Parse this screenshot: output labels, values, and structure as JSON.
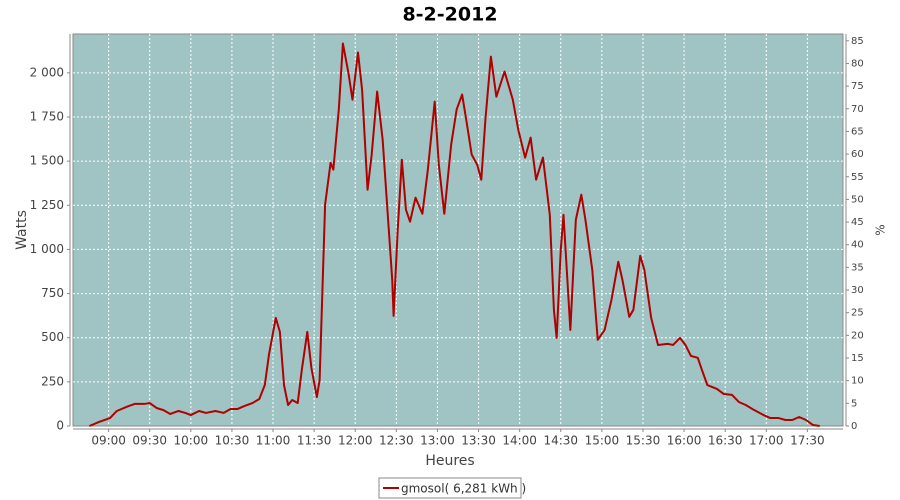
{
  "chart_data": {
    "type": "line",
    "title": "8-2-2012",
    "x_label": "Heures",
    "y_label": "Watts",
    "y2_label": "%",
    "x": [
      "08:46",
      "08:53",
      "09:01",
      "09:06",
      "09:13",
      "09:19",
      "09:26",
      "09:30",
      "09:35",
      "09:40",
      "09:45",
      "09:51",
      "09:56",
      "10:00",
      "10:06",
      "10:11",
      "10:18",
      "10:24",
      "10:29",
      "10:34",
      "10:39",
      "10:45",
      "10:50",
      "10:54",
      "10:57",
      "11:02",
      "11:05",
      "11:08",
      "11:11",
      "11:14",
      "11:18",
      "11:21",
      "11:25",
      "11:28",
      "11:32",
      "11:34",
      "11:38",
      "11:42",
      "11:44",
      "11:48",
      "11:51",
      "11:55",
      "11:58",
      "12:02",
      "12:05",
      "12:09",
      "12:12",
      "12:16",
      "12:20",
      "12:23",
      "12:27",
      "12:28",
      "12:31",
      "12:34",
      "12:37",
      "12:40",
      "12:44",
      "12:49",
      "12:53",
      "12:58",
      "13:01",
      "13:05",
      "13:10",
      "13:14",
      "13:18",
      "13:21",
      "13:25",
      "13:29",
      "13:32",
      "13:35",
      "13:39",
      "13:43",
      "13:49",
      "13:55",
      "13:59",
      "14:04",
      "14:08",
      "14:12",
      "14:17",
      "14:22",
      "14:25",
      "14:27",
      "14:30",
      "14:32",
      "14:37",
      "14:41",
      "14:45",
      "14:48",
      "14:53",
      "14:57",
      "15:02",
      "15:07",
      "15:12",
      "15:15",
      "15:20",
      "15:23",
      "15:28",
      "15:31",
      "15:36",
      "15:41",
      "15:48",
      "15:52",
      "15:57",
      "16:01",
      "16:05",
      "16:10",
      "16:13",
      "16:17",
      "16:24",
      "16:29",
      "16:35",
      "16:40",
      "16:45",
      "16:51",
      "16:58",
      "17:03",
      "17:09",
      "17:14",
      "17:19",
      "17:24",
      "17:29",
      "17:34",
      "17:39"
    ],
    "series": [
      {
        "name": "gmosol( 6,281 kWh )",
        "color": "#b00000",
        "values": [
          0,
          23,
          45,
          85,
          108,
          125,
          125,
          130,
          102,
          90,
          68,
          85,
          74,
          62,
          85,
          74,
          85,
          74,
          96,
          96,
          113,
          130,
          153,
          232,
          403,
          612,
          533,
          232,
          119,
          147,
          130,
          318,
          533,
          329,
          164,
          261,
          1253,
          1491,
          1452,
          1792,
          2166,
          2001,
          1848,
          2115,
          1905,
          1338,
          1537,
          1894,
          1622,
          1281,
          828,
          624,
          1111,
          1508,
          1225,
          1157,
          1293,
          1202,
          1452,
          1837,
          1480,
          1202,
          1593,
          1792,
          1877,
          1735,
          1537,
          1480,
          1395,
          1735,
          2092,
          1865,
          2007,
          1848,
          1678,
          1520,
          1633,
          1395,
          1520,
          1196,
          658,
          499,
          998,
          1196,
          544,
          1168,
          1310,
          1168,
          885,
          488,
          544,
          714,
          930,
          828,
          618,
          658,
          964,
          885,
          612,
          459,
          465,
          459,
          499,
          459,
          397,
          386,
          318,
          232,
          210,
          181,
          176,
          136,
          119,
          91,
          62,
          45,
          45,
          34,
          34,
          51,
          34,
          6,
          0
        ]
      }
    ],
    "xlim": [
      "08:34",
      "17:56"
    ],
    "xticks": [
      "09:00",
      "09:30",
      "10:00",
      "10:30",
      "11:00",
      "11:30",
      "12:00",
      "12:30",
      "13:00",
      "13:30",
      "14:00",
      "14:30",
      "15:00",
      "15:30",
      "16:00",
      "16:30",
      "17:00",
      "17:30"
    ],
    "ylim": [
      0,
      2220
    ],
    "yticks": [
      0,
      250,
      500,
      750,
      {
        "value": 1000,
        "label": "1 000"
      },
      {
        "value": 1250,
        "label": "1 250"
      },
      {
        "value": 1500,
        "label": "1 500"
      },
      {
        "value": 1750,
        "label": "1 750"
      },
      {
        "value": 2000,
        "label": "2 000"
      }
    ],
    "y2lim": [
      0,
      86.5
    ],
    "y2ticks": [
      0,
      5,
      10,
      15,
      20,
      25,
      30,
      35,
      40,
      45,
      50,
      55,
      60,
      65,
      70,
      75,
      80,
      85
    ],
    "grid": true,
    "plot_background": "#a0c4c4",
    "legend": "bottom"
  }
}
